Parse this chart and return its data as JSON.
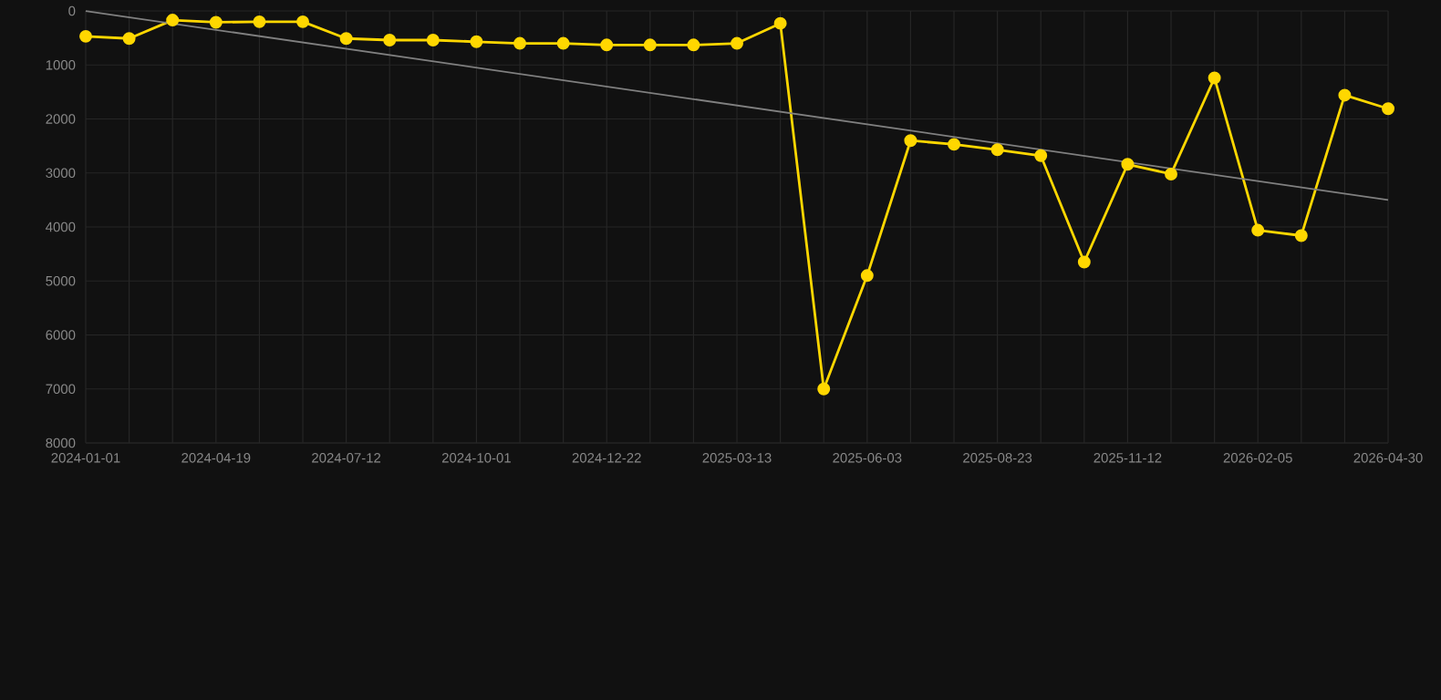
{
  "chart_data": {
    "type": "line",
    "categories": [
      "2024-01-01",
      null,
      null,
      "2024-04-19",
      null,
      null,
      "2024-07-12",
      null,
      null,
      "2024-10-01",
      null,
      null,
      "2024-12-22",
      null,
      null,
      "2025-03-13",
      null,
      null,
      "2025-06-03",
      null,
      null,
      "2025-08-23",
      null,
      null,
      "2025-11-12",
      null,
      null,
      "2026-02-05",
      null,
      null,
      "2026-04-30"
    ],
    "series": [
      {
        "color": "#ffd700",
        "marker": "circle",
        "values": [
          470,
          510,
          170,
          210,
          200,
          200,
          510,
          540,
          540,
          570,
          600,
          600,
          630,
          630,
          630,
          600,
          230,
          7000,
          4900,
          2400,
          2470,
          2570,
          2680,
          4650,
          2840,
          3020,
          1240,
          4060,
          4160,
          1560,
          1810
        ]
      },
      {
        "color": "#808080",
        "marker": "none",
        "values": [
          0,
          null,
          null,
          null,
          null,
          null,
          null,
          null,
          null,
          null,
          null,
          null,
          null,
          null,
          null,
          null,
          null,
          null,
          null,
          null,
          null,
          null,
          null,
          null,
          null,
          null,
          null,
          null,
          null,
          null,
          3500
        ]
      }
    ],
    "ylim": [
      8000,
      0
    ],
    "yticks": [
      0,
      1000,
      2000,
      3000,
      4000,
      5000,
      6000,
      7000,
      8000
    ],
    "grid": true
  }
}
